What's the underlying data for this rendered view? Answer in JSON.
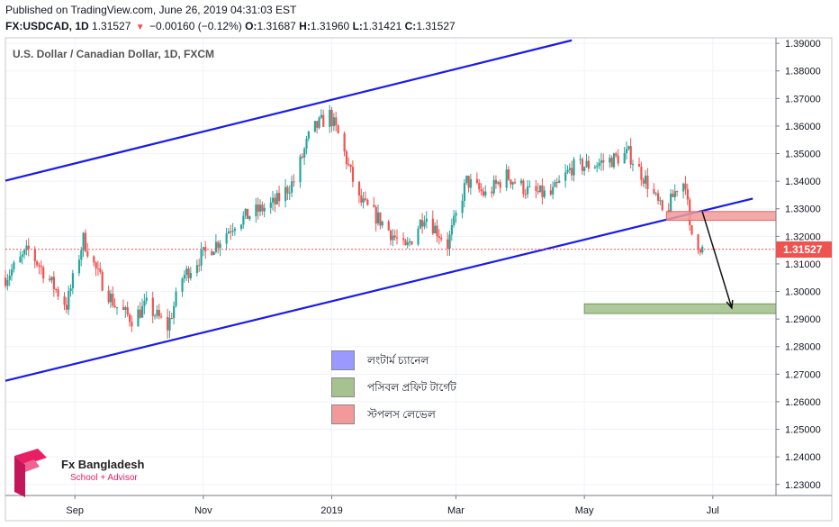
{
  "header": {
    "published": "Published on TradingView.com, June 26, 2019 04:31:03 EST",
    "symbol": "FX:USDCAD, 1D",
    "last": "1.31527",
    "change": "−0.00160 (−0.12%)",
    "o_label": "O:",
    "o_value": "1.31687",
    "h_label": "H:",
    "h_value": "1.31960",
    "l_label": "L:",
    "l_value": "1.31421",
    "c_label": "C:",
    "c_value": "1.31527"
  },
  "symbol_title": "U.S. Dollar / Canadian Dollar, 1D, FXCM",
  "legend": [
    {
      "label": "লংটার্ম চ্যানেল",
      "color": "#9999ff"
    },
    {
      "label": "পসিবল প্রফিট টার্গেট",
      "color": "#a5c290"
    },
    {
      "label": "স্টপলস লেভেল",
      "color": "#f29a9a"
    }
  ],
  "logo": {
    "title": "Fx Bangladesh",
    "subtitle": "School + Advisor"
  },
  "current_price_label": "1.31527",
  "colors": {
    "up": "#26a69a",
    "down": "#ef5350",
    "channel": "#1a1aee",
    "stop_zone": "#f29a9a",
    "target_zone": "#a5c290"
  },
  "chart_data": {
    "type": "candlestick",
    "y_ticks": [
      "1.23000",
      "1.24000",
      "1.25000",
      "1.26000",
      "1.27000",
      "1.28000",
      "1.29000",
      "1.30000",
      "1.31000",
      "1.32000",
      "1.33000",
      "1.34000",
      "1.35000",
      "1.36000",
      "1.37000",
      "1.38000",
      "1.39000"
    ],
    "ylim": [
      1.226,
      1.392
    ],
    "x_labels": [
      "Sep",
      "Nov",
      "2019",
      "Mar",
      "May",
      "Jul"
    ],
    "x_label_dates": [
      "2018-09-01",
      "2018-11-01",
      "2019-01-01",
      "2019-03-01",
      "2019-05-01",
      "2019-07-01"
    ],
    "close_path": [
      [
        "2018-07-30",
        1.305
      ],
      [
        "2018-08-10",
        1.315
      ],
      [
        "2018-08-20",
        1.304
      ],
      [
        "2018-08-28",
        1.295
      ],
      [
        "2018-09-05",
        1.319
      ],
      [
        "2018-09-12",
        1.306
      ],
      [
        "2018-09-20",
        1.295
      ],
      [
        "2018-09-28",
        1.29
      ],
      [
        "2018-10-05",
        1.295
      ],
      [
        "2018-10-15",
        1.287
      ],
      [
        "2018-10-22",
        1.305
      ],
      [
        "2018-10-30",
        1.312
      ],
      [
        "2018-11-08",
        1.318
      ],
      [
        "2018-11-16",
        1.325
      ],
      [
        "2018-11-26",
        1.329
      ],
      [
        "2018-12-05",
        1.332
      ],
      [
        "2018-12-14",
        1.34
      ],
      [
        "2018-12-22",
        1.358
      ],
      [
        "2018-12-31",
        1.364
      ],
      [
        "2019-01-05",
        1.355
      ],
      [
        "2019-01-14",
        1.333
      ],
      [
        "2019-01-25",
        1.325
      ],
      [
        "2019-02-05",
        1.315
      ],
      [
        "2019-02-14",
        1.328
      ],
      [
        "2019-02-25",
        1.317
      ],
      [
        "2019-03-06",
        1.34
      ],
      [
        "2019-03-15",
        1.335
      ],
      [
        "2019-03-25",
        1.342
      ],
      [
        "2019-04-05",
        1.336
      ],
      [
        "2019-04-15",
        1.335
      ],
      [
        "2019-04-25",
        1.345
      ],
      [
        "2019-05-05",
        1.346
      ],
      [
        "2019-05-15",
        1.348
      ],
      [
        "2019-05-22",
        1.35
      ],
      [
        "2019-06-01",
        1.338
      ],
      [
        "2019-06-08",
        1.327
      ],
      [
        "2019-06-14",
        1.338
      ],
      [
        "2019-06-18",
        1.34
      ],
      [
        "2019-06-20",
        1.322
      ],
      [
        "2019-06-26",
        1.3153
      ]
    ],
    "channel_upper": [
      [
        "2018-07-30",
        1.3402
      ],
      [
        "2019-04-25",
        1.3911
      ]
    ],
    "channel_lower": [
      [
        "2018-07-30",
        1.2676
      ],
      [
        "2019-07-20",
        1.3337
      ]
    ],
    "stop_zone": {
      "x": [
        "2019-06-09",
        "2019-07-31"
      ],
      "y": [
        1.3258,
        1.329
      ]
    },
    "target_zone": {
      "x": [
        "2019-05-01",
        "2019-07-31"
      ],
      "y": [
        1.292,
        1.2955
      ]
    },
    "projection_arrow": [
      [
        "2019-06-26",
        1.329
      ],
      [
        "2019-07-10",
        1.294
      ]
    ],
    "current_price": 1.31527
  }
}
